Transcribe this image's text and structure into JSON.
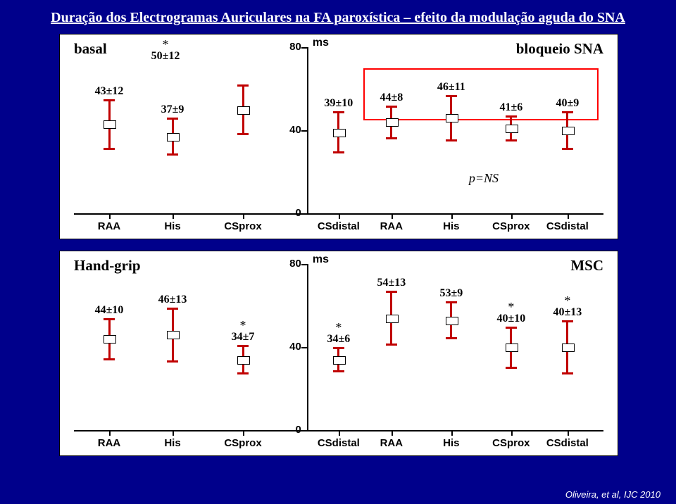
{
  "page": {
    "title": "Duração dos Electrogramas Auriculares na FA paroxística – efeito da modulação aguda do SNA",
    "credit": "Oliveira, et al, IJC 2010"
  },
  "charts": {
    "top": {
      "left_label": "basal",
      "left_star": "*",
      "left_star_label": "50±12",
      "right_label": "bloqueio SNA",
      "units": "ms",
      "p_note": "p=NS",
      "yaxis": {
        "min": 0,
        "max": 80,
        "ticks": [
          0,
          40,
          80
        ],
        "tick_labels": [
          "0",
          "40",
          "80"
        ]
      },
      "x_labels": [
        "RAA",
        "His",
        "CSprox",
        "CSdistal",
        "RAA",
        "His",
        "CSprox",
        "CSdistal"
      ],
      "redbox": {
        "start_col": 4,
        "end_col": 7
      },
      "series": [
        {
          "mean": 43,
          "err": 12,
          "label": "43±12"
        },
        {
          "mean": 37,
          "err": 9,
          "label": "37±9"
        },
        {
          "mean": 50,
          "err": 12,
          "label": "",
          "overlay_star": true
        },
        {
          "mean": 39,
          "err": 10,
          "label": "39±10"
        },
        {
          "mean": 44,
          "err": 8,
          "label": "44±8"
        },
        {
          "mean": 46,
          "err": 11,
          "label": "46±11"
        },
        {
          "mean": 41,
          "err": 6,
          "label": "41±6"
        },
        {
          "mean": 40,
          "err": 9,
          "label": "40±9"
        }
      ]
    },
    "bottom": {
      "left_label": "Hand-grip",
      "right_label": "MSC",
      "units": "ms",
      "yaxis": {
        "min": 0,
        "max": 80,
        "ticks": [
          0,
          40,
          80
        ],
        "tick_labels": [
          "0",
          "40",
          "80"
        ]
      },
      "x_labels": [
        "RAA",
        "His",
        "CSprox",
        "CSdistal",
        "RAA",
        "His",
        "CSprox",
        "CSdistal"
      ],
      "series": [
        {
          "mean": 44,
          "err": 10,
          "label": "44±10"
        },
        {
          "mean": 46,
          "err": 13,
          "label": "46±13"
        },
        {
          "mean": 34,
          "err": 7,
          "label": "34±7",
          "star": true
        },
        {
          "mean": 34,
          "err": 6,
          "label": "34±6",
          "star": true
        },
        {
          "mean": 54,
          "err": 13,
          "label": "54±13"
        },
        {
          "mean": 53,
          "err": 9,
          "label": "53±9"
        },
        {
          "mean": 40,
          "err": 10,
          "label": "40±10",
          "star": true
        },
        {
          "mean": 40,
          "err": 13,
          "label": "40±13",
          "star": true
        }
      ]
    }
  },
  "colors": {
    "bg": "#00008b",
    "series": "#c00000",
    "box_fill": "#ffffff",
    "panel_border": "#000000",
    "redbox": "#ff0000"
  }
}
